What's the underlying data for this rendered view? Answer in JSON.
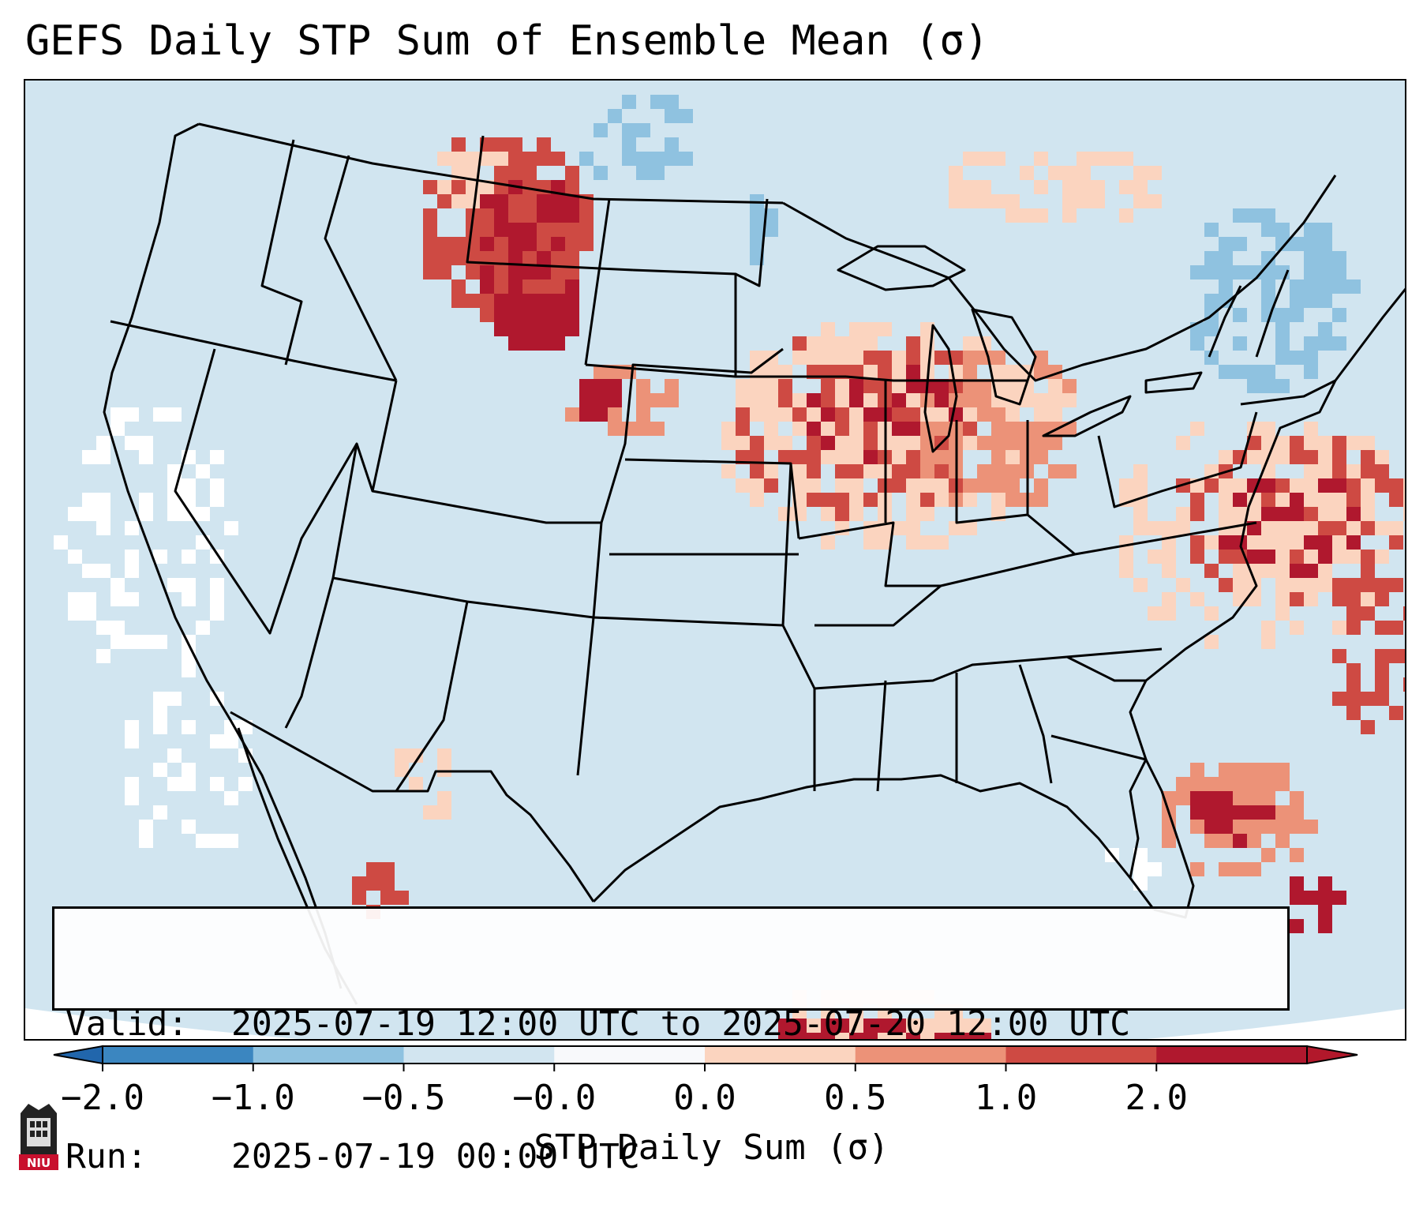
{
  "title": "GEFS Daily STP Sum of Ensemble Mean (σ)",
  "info": {
    "valid_label": "Valid:",
    "valid_value": "2025-07-19 12:00 UTC to 2025-07-20 12:00 UTC",
    "run_label": "Run:",
    "run_value": "2025-07-19 00:00 UTC"
  },
  "colorbar": {
    "label": "STP Daily Sum (σ)",
    "ticks": [
      "−2.0",
      "−1.0",
      "−0.5",
      "−0.0",
      "0.0",
      "0.5",
      "1.0",
      "2.0"
    ],
    "colors": [
      "#3b86c0",
      "#8fc2e0",
      "#d2e5f0",
      "#f8f9fb",
      "#fbd4bf",
      "#ec9278",
      "#ce4a43",
      "#b0182e"
    ],
    "extend_low_color": "#2166ac",
    "extend_high_color": "#b2182b"
  },
  "map": {
    "projection": "Lambert conformal over contiguous United States",
    "background_color": "#d1e5f0",
    "outside_color": "#ffffff",
    "line_color": "#000000",
    "anomaly_regions": [
      {
        "region": "central Montana",
        "sigma": 2.0
      },
      {
        "region": "southern Wisconsin / northern Illinois",
        "sigma": 2.0
      },
      {
        "region": "lower Michigan",
        "sigma": 1.0
      },
      {
        "region": "Virginia / Delmarva coast",
        "sigma": 2.0
      },
      {
        "region": "western Nebraska / South Dakota",
        "sigma": 1.0
      },
      {
        "region": "off Florida east coast",
        "sigma": 2.0
      },
      {
        "region": "northern Maine / New England",
        "sigma": -0.5
      }
    ]
  },
  "logo": {
    "text": "NIU",
    "color": "#c8102e"
  }
}
